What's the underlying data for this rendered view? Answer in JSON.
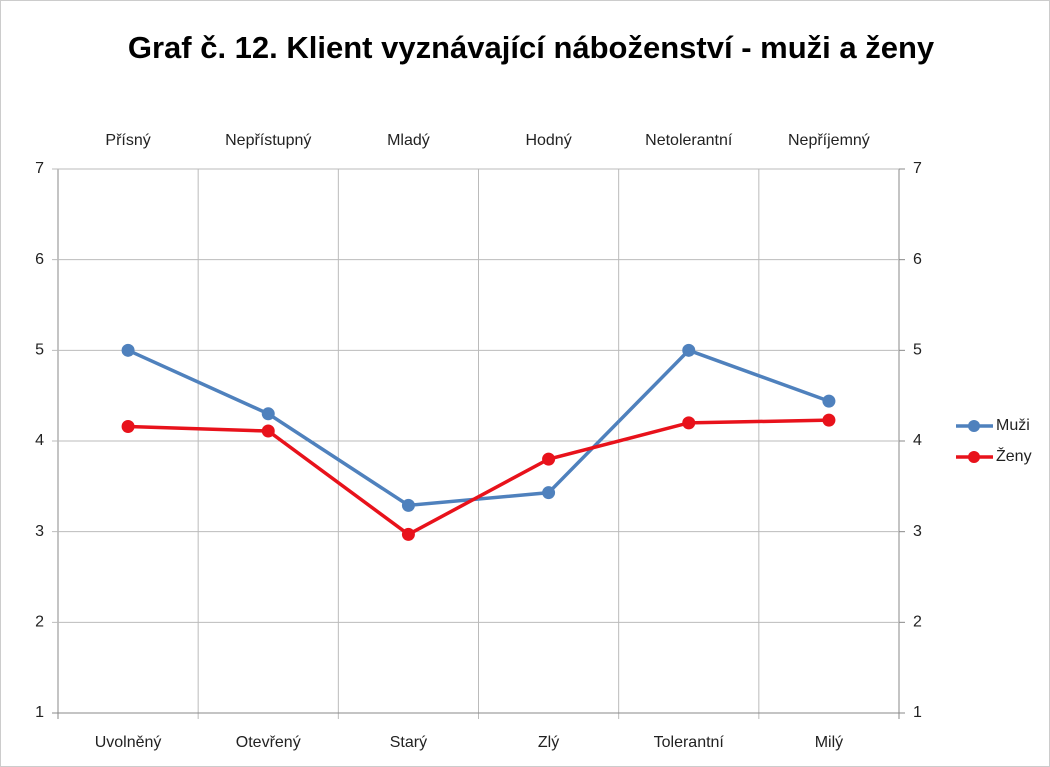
{
  "chart_data": {
    "type": "line",
    "title": "Graf č. 12. Klient vyznávající náboženství - muži a ženy",
    "categories": [
      "Uvolněný",
      "Otevřený",
      "Starý",
      "Zlý",
      "Tolerantní",
      "Milý"
    ],
    "categories_top": [
      "Přísný",
      "Nepřístupný",
      "Mladý",
      "Hodný",
      "Netolerantní",
      "Nepříjemný"
    ],
    "series": [
      {
        "name": "Muži",
        "color": "#4f81bd",
        "values": [
          5.0,
          4.3,
          3.29,
          3.43,
          5.0,
          4.44
        ]
      },
      {
        "name": "Ženy",
        "color": "#e8121b",
        "values": [
          4.16,
          4.11,
          2.97,
          3.8,
          4.2,
          4.23
        ]
      }
    ],
    "ylim": [
      1,
      7
    ],
    "yticks": [
      1,
      2,
      3,
      4,
      5,
      6,
      7
    ],
    "y2lim": [
      1,
      7
    ],
    "y2ticks": [
      1,
      2,
      3,
      4,
      5,
      6,
      7
    ],
    "grid": true,
    "legend": "right"
  }
}
